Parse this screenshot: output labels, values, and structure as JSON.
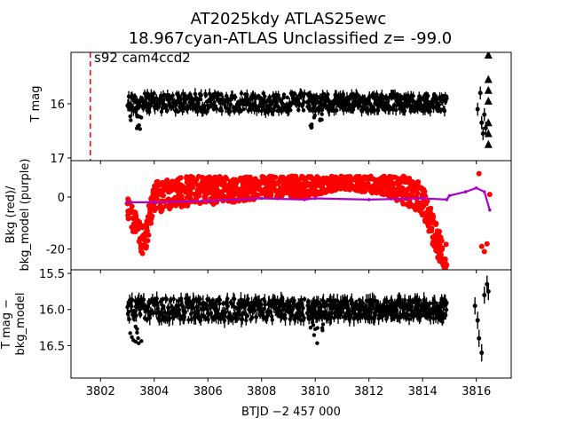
{
  "figure": {
    "title_line1": "AT2025kdy  ATLAS25ewc",
    "title_line2": "18.967cyan-ATLAS Unclassified z= -99.0",
    "xlabel": "BTJD −2 457 000",
    "x_ticks": [
      3802,
      3804,
      3806,
      3808,
      3810,
      3812,
      3814,
      3816
    ],
    "xlim": [
      3800.9,
      3817.3
    ]
  },
  "chart_data": [
    {
      "type": "scatter",
      "name": "tmag-panel",
      "ylabel": "T mag",
      "ylim": [
        17.05,
        15.05
      ],
      "y_inverted": true,
      "y_ticks": [
        16,
        17
      ],
      "annotation": "s92 cam4ccd2",
      "vline_x": 3801.62,
      "vline_color": "#ff0000",
      "segments": [
        {
          "x_start": 3803.0,
          "x_end": 3809.6,
          "center": 15.98,
          "half_width": 0.22
        },
        {
          "x_start": 3809.7,
          "x_end": 3814.9,
          "center": 15.98,
          "half_width": 0.2
        }
      ],
      "late_points": [
        {
          "x": 3816.05,
          "y": 16.1
        },
        {
          "x": 3816.15,
          "y": 15.8
        },
        {
          "x": 3816.2,
          "y": 16.35
        },
        {
          "x": 3816.25,
          "y": 16.55
        },
        {
          "x": 3816.3,
          "y": 16.2
        },
        {
          "x": 3816.35,
          "y": 16.45
        }
      ],
      "triangles": [
        {
          "x": 3816.45,
          "y": 15.1
        },
        {
          "x": 3816.45,
          "y": 15.55
        },
        {
          "x": 3816.45,
          "y": 15.75
        },
        {
          "x": 3816.45,
          "y": 15.95
        },
        {
          "x": 3816.45,
          "y": 16.35
        },
        {
          "x": 3816.45,
          "y": 16.55
        },
        {
          "x": 3816.45,
          "y": 16.75
        }
      ],
      "color": "#000000"
    },
    {
      "type": "scatter",
      "name": "bkg-panel",
      "ylabel": "Bkg (red)/\nbkg_model (purple)",
      "ylim": [
        -28,
        14
      ],
      "y_ticks": [
        -20,
        0
      ],
      "bkg_color": "#ff0000",
      "model_color": "#aa00cc",
      "model_line": [
        {
          "x": 3803.0,
          "y": -2.0
        },
        {
          "x": 3804.0,
          "y": -2.0
        },
        {
          "x": 3806.0,
          "y": -1.5
        },
        {
          "x": 3808.0,
          "y": -0.5
        },
        {
          "x": 3809.6,
          "y": -1.0
        },
        {
          "x": 3810.0,
          "y": -0.5
        },
        {
          "x": 3812.0,
          "y": -1.0
        },
        {
          "x": 3814.0,
          "y": -0.5
        },
        {
          "x": 3814.9,
          "y": -1.0
        },
        {
          "x": 3815.0,
          "y": 0.5
        },
        {
          "x": 3815.6,
          "y": 2.0
        },
        {
          "x": 3816.0,
          "y": 3.5
        },
        {
          "x": 3816.3,
          "y": 2.0
        },
        {
          "x": 3816.5,
          "y": -5.0
        }
      ],
      "bkg_outline": [
        {
          "x": 3803.0,
          "y": -6
        },
        {
          "x": 3803.3,
          "y": -15
        },
        {
          "x": 3803.6,
          "y": -22
        },
        {
          "x": 3804.0,
          "y": -4
        },
        {
          "x": 3806.0,
          "y": -1
        },
        {
          "x": 3808.0,
          "y": 1
        },
        {
          "x": 3809.6,
          "y": 2
        },
        {
          "x": 3811.0,
          "y": 5
        },
        {
          "x": 3812.5,
          "y": 3
        },
        {
          "x": 3814.0,
          "y": -5
        },
        {
          "x": 3814.5,
          "y": -20
        },
        {
          "x": 3814.8,
          "y": -26
        }
      ],
      "bkg_late": [
        {
          "x": 3816.1,
          "y": 9
        },
        {
          "x": 3816.2,
          "y": -19
        },
        {
          "x": 3816.3,
          "y": -21
        },
        {
          "x": 3816.4,
          "y": -18
        },
        {
          "x": 3816.5,
          "y": 1
        }
      ]
    },
    {
      "type": "scatter",
      "name": "tmag-minus-bkg-panel",
      "ylabel": "T mag −\nbkg_model",
      "ylim": [
        16.95,
        15.45
      ],
      "y_inverted": true,
      "y_ticks": [
        15.5,
        16.0,
        16.5
      ],
      "y_tick_labels": [
        "15.5",
        "16.0",
        "16.5"
      ],
      "segments": [
        {
          "x_start": 3803.0,
          "x_end": 3809.6,
          "center": 16.0,
          "half_width": 0.19
        },
        {
          "x_start": 3809.7,
          "x_end": 3814.9,
          "center": 16.0,
          "half_width": 0.17
        }
      ],
      "late_points": [
        {
          "x": 3815.95,
          "y": 15.95
        },
        {
          "x": 3816.05,
          "y": 16.15
        },
        {
          "x": 3816.1,
          "y": 16.4
        },
        {
          "x": 3816.2,
          "y": 16.6
        },
        {
          "x": 3816.3,
          "y": 15.8
        },
        {
          "x": 3816.4,
          "y": 15.65
        },
        {
          "x": 3816.45,
          "y": 15.75
        }
      ],
      "color": "#000000"
    }
  ]
}
